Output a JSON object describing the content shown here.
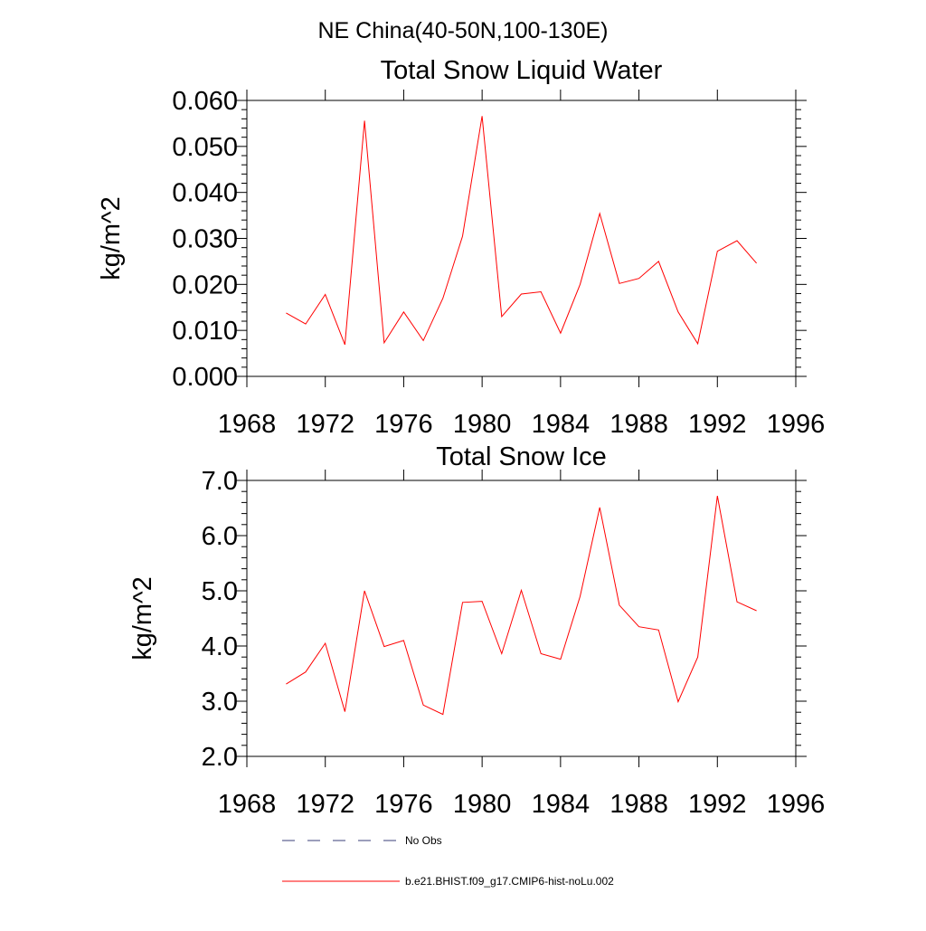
{
  "figure": {
    "suptitle": "NE China(40-50N,100-130E)"
  },
  "chart_data": [
    {
      "type": "line",
      "title": "Total Snow Liquid Water",
      "xlabel": "",
      "ylabel": "kg/m^2",
      "xlim": [
        1968,
        1996
      ],
      "ylim": [
        0.0,
        0.06
      ],
      "xticks": [
        "1968",
        "1972",
        "1976",
        "1980",
        "1984",
        "1988",
        "1992",
        "1996"
      ],
      "yticks": [
        "0.000",
        "0.010",
        "0.020",
        "0.030",
        "0.040",
        "0.050",
        "0.060"
      ],
      "x": [
        1970,
        1971,
        1972,
        1973,
        1974,
        1975,
        1976,
        1977,
        1978,
        1979,
        1980,
        1981,
        1982,
        1983,
        1984,
        1985,
        1986,
        1987,
        1988,
        1989,
        1990,
        1991,
        1992,
        1993,
        1994
      ],
      "series": [
        {
          "name": "b.e21.BHIST.f09_g17.CMIP6-hist-noLu.002",
          "color": "#ff0000",
          "values": [
            0.0138,
            0.0114,
            0.0178,
            0.0069,
            0.0556,
            0.0073,
            0.014,
            0.0078,
            0.017,
            0.0305,
            0.0566,
            0.013,
            0.0179,
            0.0184,
            0.0094,
            0.02,
            0.0354,
            0.0202,
            0.0213,
            0.025,
            0.014,
            0.0071,
            0.0272,
            0.0295,
            0.0246
          ]
        }
      ]
    },
    {
      "type": "line",
      "title": "Total Snow Ice",
      "xlabel": "",
      "ylabel": "kg/m^2",
      "xlim": [
        1968,
        1996
      ],
      "ylim": [
        2.0,
        7.0
      ],
      "xticks": [
        "1968",
        "1972",
        "1976",
        "1980",
        "1984",
        "1988",
        "1992",
        "1996"
      ],
      "yticks": [
        "2.0",
        "3.0",
        "4.0",
        "5.0",
        "6.0",
        "7.0"
      ],
      "x": [
        1970,
        1971,
        1972,
        1973,
        1974,
        1975,
        1976,
        1977,
        1978,
        1979,
        1980,
        1981,
        1982,
        1983,
        1984,
        1985,
        1986,
        1987,
        1988,
        1989,
        1990,
        1991,
        1992,
        1993,
        1994
      ],
      "series": [
        {
          "name": "b.e21.BHIST.f09_g17.CMIP6-hist-noLu.002",
          "color": "#ff0000",
          "values": [
            3.31,
            3.53,
            4.05,
            2.81,
            5.0,
            3.99,
            4.1,
            2.93,
            2.76,
            4.79,
            4.81,
            3.86,
            5.01,
            3.86,
            3.76,
            4.9,
            6.51,
            4.74,
            4.35,
            4.29,
            2.99,
            3.8,
            6.72,
            4.8,
            4.64
          ]
        }
      ]
    }
  ],
  "legend": [
    {
      "label": "No Obs",
      "style": "dashed",
      "color": "#3a3f7a"
    },
    {
      "label": "b.e21.BHIST.f09_g17.CMIP6-hist-noLu.002",
      "style": "solid",
      "color": "#ff0000"
    }
  ]
}
